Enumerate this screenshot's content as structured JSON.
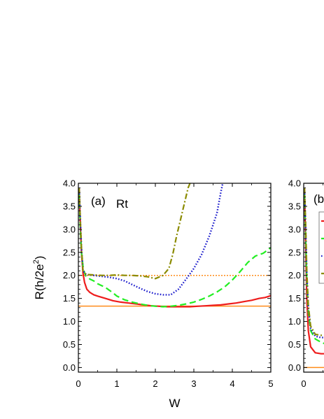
{
  "chart_data": [
    {
      "panel": "(a)",
      "type": "line",
      "title": "",
      "annotation": "Rt",
      "xlabel": "W",
      "ylabel_main": "R(h/2e",
      "ylabel_sup": "2",
      "ylabel_close": ")",
      "xlim": [
        0,
        5
      ],
      "ylim": [
        -0.1,
        4.0
      ],
      "x_ticks": [
        "0",
        "1",
        "2",
        "3",
        "4",
        "5"
      ],
      "y_ticks": [
        "0.0",
        "0.5",
        "1.0",
        "1.5",
        "2.0",
        "2.5",
        "3.0",
        "3.5",
        "4.0"
      ],
      "grid": false,
      "reference_lines": [
        {
          "y": 2.0,
          "color": "#ff8c1a",
          "style": "dotted"
        },
        {
          "y": 1.333,
          "color": "#ff8c1a",
          "style": "solid"
        }
      ],
      "series": [
        {
          "color": "#ee1c1c",
          "style": "solid",
          "x": [
            0.02,
            0.05,
            0.08,
            0.12,
            0.16,
            0.22,
            0.3,
            0.4,
            0.5,
            0.7,
            0.9,
            1.1,
            1.3,
            1.5,
            1.7,
            1.9,
            2.1,
            2.3,
            2.5,
            2.7,
            2.9,
            3.1,
            3.3,
            3.5,
            3.7,
            3.9,
            4.1,
            4.3,
            4.5,
            4.7,
            4.85,
            5.0
          ],
          "y": [
            3.9,
            3.1,
            2.5,
            2.05,
            1.85,
            1.7,
            1.63,
            1.58,
            1.55,
            1.5,
            1.45,
            1.42,
            1.4,
            1.38,
            1.36,
            1.34,
            1.33,
            1.32,
            1.32,
            1.32,
            1.32,
            1.33,
            1.34,
            1.35,
            1.36,
            1.38,
            1.4,
            1.43,
            1.46,
            1.5,
            1.52,
            1.56
          ]
        },
        {
          "color": "#22ee22",
          "style": "dashed",
          "x": [
            0.02,
            0.05,
            0.08,
            0.12,
            0.16,
            0.2,
            0.3,
            0.4,
            0.5,
            0.6,
            0.7,
            0.8,
            0.9,
            1.0,
            1.2,
            1.4,
            1.6,
            1.8,
            2.0,
            2.2,
            2.4,
            2.6,
            2.8,
            3.0,
            3.2,
            3.4,
            3.6,
            3.8,
            4.0,
            4.2,
            4.4,
            4.6,
            4.8,
            5.0
          ],
          "y": [
            3.8,
            3.0,
            2.5,
            2.2,
            2.05,
            1.98,
            1.92,
            1.88,
            1.82,
            1.78,
            1.74,
            1.68,
            1.62,
            1.55,
            1.47,
            1.42,
            1.38,
            1.35,
            1.33,
            1.32,
            1.33,
            1.35,
            1.38,
            1.42,
            1.48,
            1.55,
            1.64,
            1.75,
            1.9,
            2.08,
            2.28,
            2.42,
            2.48,
            2.6
          ]
        },
        {
          "color": "#1a1acc",
          "style": "dotted",
          "x": [
            0.02,
            0.05,
            0.08,
            0.12,
            0.2,
            0.4,
            0.6,
            0.8,
            1.0,
            1.2,
            1.4,
            1.6,
            1.8,
            2.0,
            2.2,
            2.4,
            2.6,
            2.8,
            3.0,
            3.2,
            3.4,
            3.6,
            3.7,
            3.75
          ],
          "y": [
            3.9,
            3.2,
            2.6,
            2.1,
            2.02,
            2.0,
            1.98,
            1.96,
            1.93,
            1.88,
            1.8,
            1.72,
            1.65,
            1.6,
            1.58,
            1.58,
            1.7,
            1.92,
            2.15,
            2.45,
            2.85,
            3.35,
            3.8,
            4.0
          ]
        },
        {
          "color": "#8b8b00",
          "style": "dashdot",
          "x": [
            0.02,
            0.05,
            0.08,
            0.12,
            0.2,
            0.4,
            0.6,
            0.8,
            1.0,
            1.2,
            1.4,
            1.6,
            1.8,
            2.0,
            2.2,
            2.35,
            2.45,
            2.55,
            2.65,
            2.75,
            2.85,
            2.9
          ],
          "y": [
            3.9,
            3.2,
            2.6,
            2.1,
            2.02,
            2.01,
            2.0,
            2.0,
            2.01,
            2.0,
            2.0,
            1.99,
            1.97,
            1.93,
            2.0,
            2.15,
            2.45,
            2.85,
            3.2,
            3.55,
            3.9,
            4.0
          ]
        }
      ]
    },
    {
      "panel": "(b",
      "type": "line",
      "title": "",
      "xlim": [
        0,
        5
      ],
      "ylim": [
        -0.1,
        4.0
      ],
      "x_ticks": [
        "0"
      ],
      "y_ticks": [
        "0.0",
        "0.5",
        "1.0",
        "1.5",
        "2.0",
        "2.5",
        "3.0",
        "3.5",
        "4.0"
      ],
      "grid": false,
      "reference_lines": [
        {
          "y": 0.0,
          "color": "#ff8c1a",
          "style": "solid"
        }
      ],
      "series": [
        {
          "color": "#ee1c1c",
          "style": "solid",
          "x": [
            0.02,
            0.05,
            0.08,
            0.12,
            0.18,
            0.3,
            0.45,
            0.6
          ],
          "y": [
            3.9,
            2.6,
            1.5,
            0.8,
            0.45,
            0.32,
            0.3,
            0.3
          ]
        },
        {
          "color": "#22ee22",
          "style": "dashed",
          "x": [
            0.02,
            0.05,
            0.08,
            0.12,
            0.18,
            0.3,
            0.45,
            0.6
          ],
          "y": [
            3.8,
            2.8,
            1.9,
            1.2,
            0.8,
            0.62,
            0.55,
            0.5
          ]
        },
        {
          "color": "#1a1acc",
          "style": "dotted",
          "x": [
            0.02,
            0.05,
            0.08,
            0.12,
            0.18,
            0.3,
            0.45,
            0.6
          ],
          "y": [
            3.9,
            3.0,
            2.0,
            1.3,
            0.85,
            0.68,
            0.65,
            0.65
          ]
        },
        {
          "color": "#8b8b00",
          "style": "dashdot",
          "x": [
            0.02,
            0.05,
            0.08,
            0.12,
            0.18,
            0.3,
            0.45,
            0.6
          ],
          "y": [
            3.9,
            3.1,
            2.1,
            1.35,
            0.9,
            0.72,
            0.7,
            0.7
          ]
        }
      ],
      "legend": {
        "placement": "top-right",
        "entries": [
          {
            "color": "#ee1c1c",
            "style": "solid"
          },
          {
            "color": "#22ee22",
            "style": "dashed"
          },
          {
            "color": "#1a1acc",
            "style": "dotted"
          },
          {
            "color": "#8b8b00",
            "style": "dashdot"
          }
        ]
      }
    }
  ]
}
